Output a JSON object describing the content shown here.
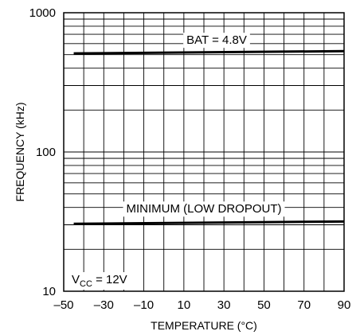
{
  "chart_data": {
    "type": "line",
    "title": "",
    "xlabel": "TEMPERATURE (°C)",
    "ylabel": "FREQUENCY (kHz)",
    "xlim": [
      -50,
      90
    ],
    "ylim": [
      10,
      1000
    ],
    "yscale": "log",
    "grid": true,
    "x_ticks": [
      "–50",
      "–30",
      "–10",
      "10",
      "30",
      "50",
      "70",
      "90"
    ],
    "y_ticks": [
      "10",
      "100",
      "1000"
    ],
    "series": [
      {
        "name": "BAT = 4.8V",
        "x": [
          -45,
          90
        ],
        "y": [
          510,
          530
        ]
      },
      {
        "name": "MINIMUM (LOW DROPOUT)",
        "x": [
          -45,
          90
        ],
        "y": [
          30.5,
          31.7
        ]
      }
    ],
    "annotations": [
      {
        "text_main": "V",
        "text_sub": "CC",
        "text_rest": " = 12V"
      }
    ]
  }
}
